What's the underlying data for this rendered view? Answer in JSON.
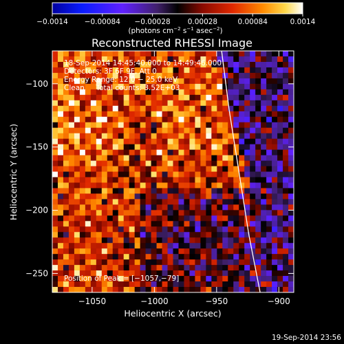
{
  "chart_data": {
    "type": "heatmap",
    "title": "Reconstructed RHESSI Image",
    "xlabel": "Heliocentric X (arcsec)",
    "ylabel": "Heliocentric Y (arcsec)",
    "xlim": [
      -1082,
      -888
    ],
    "ylim": [
      -265,
      -74
    ],
    "xticks": [
      {
        "value": -1050,
        "label": "−1050"
      },
      {
        "value": -1000,
        "label": "−1000"
      },
      {
        "value": -950,
        "label": "−950"
      },
      {
        "value": -900,
        "label": "−900"
      }
    ],
    "yticks": [
      {
        "value": -100,
        "label": "−100"
      },
      {
        "value": -150,
        "label": "−150"
      },
      {
        "value": -200,
        "label": "−200"
      },
      {
        "value": -250,
        "label": "−250"
      }
    ],
    "colorbar": {
      "range": [
        -0.0014,
        0.0014
      ],
      "ticks": [
        {
          "value": -0.0014,
          "label": "−0.0014"
        },
        {
          "value": -0.00084,
          "label": "−0.00084"
        },
        {
          "value": -0.00028,
          "label": "−0.00028"
        },
        {
          "value": 0.00028,
          "label": "0.00028"
        },
        {
          "value": 0.00084,
          "label": "0.00084"
        },
        {
          "value": 0.0014,
          "label": "0.0014"
        }
      ],
      "unit_main": "(photons cm",
      "unit_sup1": "−2",
      "unit_mid": " s",
      "unit_sup2": "−1",
      "unit_mid2": " asec",
      "unit_sup3": "−2",
      "unit_end": ")"
    },
    "annotations": [
      "18-Sep-2014 14:45:40.000 to 14:49:46.000",
      "Detectors: 3F 6F 9F, Att 0",
      "Energy Range: 12.0 − 25.0 keV",
      "Clean     Total counts: 3.52E+03"
    ],
    "peak_label": "Position of Peak = [−1057,−79]",
    "limb_curve": [
      [
        -946,
        -74
      ],
      [
        -940,
        -120
      ],
      [
        -932,
        -170
      ],
      [
        -924,
        -220
      ],
      [
        -915,
        -265
      ]
    ],
    "timestamp": "19-Sep-2014 23:56"
  }
}
